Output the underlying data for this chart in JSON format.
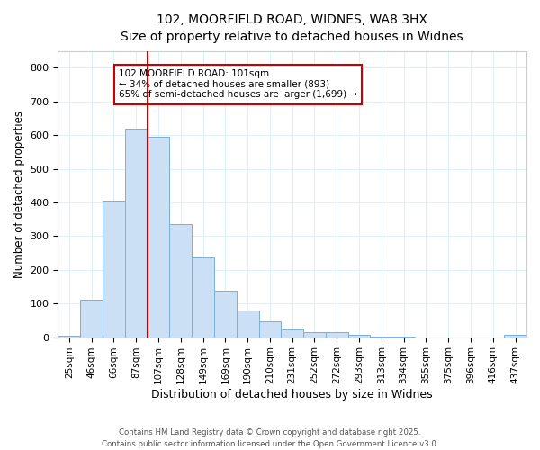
{
  "title_line1": "102, MOORFIELD ROAD, WIDNES, WA8 3HX",
  "title_line2": "Size of property relative to detached houses in Widnes",
  "xlabel": "Distribution of detached houses by size in Widnes",
  "ylabel": "Number of detached properties",
  "bin_labels": [
    "25sqm",
    "46sqm",
    "66sqm",
    "87sqm",
    "107sqm",
    "128sqm",
    "149sqm",
    "169sqm",
    "190sqm",
    "210sqm",
    "231sqm",
    "252sqm",
    "272sqm",
    "293sqm",
    "313sqm",
    "334sqm",
    "355sqm",
    "375sqm",
    "396sqm",
    "416sqm",
    "437sqm"
  ],
  "bar_values": [
    5,
    110,
    405,
    620,
    595,
    335,
    237,
    138,
    78,
    48,
    22,
    14,
    16,
    6,
    2,
    1,
    0,
    0,
    0,
    0,
    7
  ],
  "bar_color": "#cce0f5",
  "bar_edge_color": "#7ab0d8",
  "vline_index": 4,
  "marker_label": "102 MOORFIELD ROAD: 101sqm",
  "annotation_line2": "← 34% of detached houses are smaller (893)",
  "annotation_line3": "65% of semi-detached houses are larger (1,699) →",
  "vline_color": "#cc0000",
  "box_edge_color": "#cc0000",
  "ylim": [
    0,
    850
  ],
  "yticks": [
    0,
    100,
    200,
    300,
    400,
    500,
    600,
    700,
    800
  ],
  "footer_line1": "Contains HM Land Registry data © Crown copyright and database right 2025.",
  "footer_line2": "Contains public sector information licensed under the Open Government Licence v3.0.",
  "background_color": "#ffffff",
  "grid_color": "#ddeeff"
}
